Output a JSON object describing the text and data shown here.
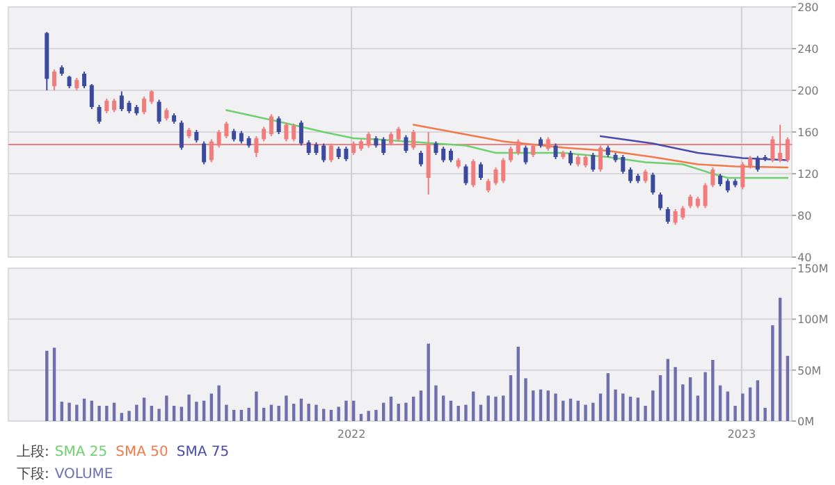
{
  "chart_data": [
    {
      "type": "candlestick",
      "x": [
        "2021-03-22",
        "2021-03-29",
        "2021-04-05",
        "2021-04-12",
        "2021-04-19",
        "2021-04-26",
        "2021-05-03",
        "2021-05-10",
        "2021-05-17",
        "2021-05-24",
        "2021-05-31",
        "2021-06-07",
        "2021-06-14",
        "2021-06-21",
        "2021-06-28",
        "2021-07-05",
        "2021-07-12",
        "2021-07-19",
        "2021-07-26",
        "2021-08-02",
        "2021-08-09",
        "2021-08-16",
        "2021-08-23",
        "2021-08-30",
        "2021-09-06",
        "2021-09-13",
        "2021-09-20",
        "2021-09-27",
        "2021-10-04",
        "2021-10-11",
        "2021-10-18",
        "2021-10-25",
        "2021-11-01",
        "2021-11-08",
        "2021-11-15",
        "2021-11-22",
        "2021-11-29",
        "2021-12-06",
        "2021-12-13",
        "2021-12-20",
        "2021-12-27",
        "2022-01-03",
        "2022-01-10",
        "2022-01-17",
        "2022-01-24",
        "2022-01-31",
        "2022-02-07",
        "2022-02-14",
        "2022-02-21",
        "2022-02-28",
        "2022-03-07",
        "2022-03-14",
        "2022-03-21",
        "2022-03-28",
        "2022-04-04",
        "2022-04-11",
        "2022-04-18",
        "2022-04-25",
        "2022-05-02",
        "2022-05-09",
        "2022-05-16",
        "2022-05-23",
        "2022-05-30",
        "2022-06-06",
        "2022-06-13",
        "2022-06-20",
        "2022-06-27",
        "2022-07-04",
        "2022-07-11",
        "2022-07-18",
        "2022-07-25",
        "2022-08-01",
        "2022-08-08",
        "2022-08-15",
        "2022-08-22",
        "2022-08-29",
        "2022-09-05",
        "2022-09-12",
        "2022-09-19",
        "2022-09-26",
        "2022-10-03",
        "2022-10-10",
        "2022-10-17",
        "2022-10-24",
        "2022-10-31",
        "2022-11-07",
        "2022-11-14",
        "2022-11-21",
        "2022-11-28",
        "2022-12-05",
        "2022-12-12",
        "2022-12-19",
        "2022-12-26",
        "2023-01-02",
        "2023-01-09",
        "2023-01-16",
        "2023-01-23",
        "2023-01-30",
        "2023-02-06",
        "2023-02-13"
      ],
      "ohlc": [
        [
          255,
          256,
          200,
          211
        ],
        [
          204,
          220,
          200,
          218
        ],
        [
          222,
          224,
          214,
          216
        ],
        [
          213,
          214,
          202,
          204
        ],
        [
          202,
          212,
          200,
          210
        ],
        [
          216,
          218,
          202,
          204
        ],
        [
          205,
          206,
          182,
          184
        ],
        [
          184,
          186,
          168,
          170
        ],
        [
          180,
          192,
          178,
          190
        ],
        [
          181,
          192,
          179,
          190
        ],
        [
          195,
          199,
          180,
          182
        ],
        [
          188,
          190,
          178,
          180
        ],
        [
          184,
          186,
          176,
          178
        ],
        [
          179,
          194,
          177,
          192
        ],
        [
          189,
          200,
          187,
          199
        ],
        [
          189,
          191,
          168,
          170
        ],
        [
          173,
          183,
          171,
          181
        ],
        [
          176,
          178,
          168,
          170
        ],
        [
          169,
          171,
          143,
          145
        ],
        [
          156,
          164,
          154,
          162
        ],
        [
          160,
          162,
          150,
          152
        ],
        [
          149,
          151,
          129,
          131
        ],
        [
          133,
          153,
          131,
          151
        ],
        [
          147,
          162,
          145,
          160
        ],
        [
          156,
          170,
          154,
          168
        ],
        [
          161,
          163,
          151,
          153
        ],
        [
          159,
          161,
          149,
          151
        ],
        [
          154,
          156,
          145,
          147
        ],
        [
          140,
          156,
          136,
          154
        ],
        [
          153,
          165,
          151,
          163
        ],
        [
          158,
          177,
          156,
          175
        ],
        [
          173,
          175,
          158,
          160
        ],
        [
          153,
          169,
          151,
          167
        ],
        [
          153,
          168,
          151,
          166
        ],
        [
          169,
          171,
          147,
          149
        ],
        [
          150,
          152,
          138,
          140
        ],
        [
          148,
          150,
          138,
          140
        ],
        [
          147,
          149,
          131,
          133
        ],
        [
          133,
          149,
          131,
          147
        ],
        [
          144,
          146,
          134,
          136
        ],
        [
          144,
          146,
          132,
          134
        ],
        [
          140,
          151,
          138,
          149
        ],
        [
          144,
          153,
          142,
          151
        ],
        [
          147,
          160,
          145,
          158
        ],
        [
          154,
          156,
          145,
          147
        ],
        [
          153,
          155,
          138,
          140
        ],
        [
          149,
          160,
          147,
          158
        ],
        [
          153,
          165,
          151,
          163
        ],
        [
          155,
          157,
          140,
          142
        ],
        [
          145,
          162,
          143,
          160
        ],
        [
          140,
          142,
          127,
          129
        ],
        [
          116,
          160,
          100,
          148
        ],
        [
          149,
          151,
          138,
          140
        ],
        [
          144,
          146,
          131,
          133
        ],
        [
          142,
          144,
          131,
          133
        ],
        [
          127,
          135,
          125,
          133
        ],
        [
          127,
          129,
          109,
          111
        ],
        [
          109,
          134,
          107,
          132
        ],
        [
          129,
          131,
          114,
          116
        ],
        [
          104,
          115,
          102,
          113
        ],
        [
          111,
          126,
          109,
          124
        ],
        [
          113,
          135,
          111,
          133
        ],
        [
          133,
          146,
          131,
          144
        ],
        [
          140,
          153,
          138,
          151
        ],
        [
          145,
          147,
          129,
          131
        ],
        [
          138,
          149,
          136,
          147
        ],
        [
          153,
          155,
          145,
          147
        ],
        [
          144,
          155,
          142,
          153
        ],
        [
          147,
          149,
          134,
          136
        ],
        [
          136,
          142,
          134,
          140
        ],
        [
          140,
          142,
          128,
          130
        ],
        [
          129,
          138,
          127,
          136
        ],
        [
          128,
          138,
          126,
          136
        ],
        [
          138,
          140,
          122,
          124
        ],
        [
          124,
          147,
          122,
          145
        ],
        [
          145,
          147,
          136,
          138
        ],
        [
          138,
          140,
          131,
          133
        ],
        [
          136,
          138,
          120,
          122
        ],
        [
          124,
          126,
          111,
          113
        ],
        [
          118,
          120,
          111,
          113
        ],
        [
          113,
          124,
          111,
          122
        ],
        [
          119,
          121,
          100,
          102
        ],
        [
          100,
          102,
          85,
          87
        ],
        [
          86,
          88,
          72,
          74
        ],
        [
          73,
          86,
          71,
          84
        ],
        [
          78,
          89,
          76,
          87
        ],
        [
          89,
          100,
          87,
          98
        ],
        [
          89,
          98,
          87,
          96
        ],
        [
          89,
          111,
          87,
          109
        ],
        [
          109,
          126,
          107,
          124
        ],
        [
          118,
          120,
          108,
          110
        ],
        [
          113,
          115,
          102,
          104
        ],
        [
          113,
          115,
          107,
          109
        ],
        [
          107,
          131,
          105,
          129
        ],
        [
          127,
          137,
          125,
          135
        ],
        [
          135,
          137,
          122,
          124
        ],
        [
          136,
          138,
          132,
          134
        ],
        [
          133,
          156,
          131,
          153
        ],
        [
          133,
          167,
          131,
          140
        ],
        [
          133,
          155,
          131,
          153
        ]
      ],
      "series": [
        {
          "name": "SMA 25",
          "color": "#6fd06f",
          "type": "line",
          "x": [
            "2021-09-06",
            "2021-10-25",
            "2021-12-06",
            "2022-01-03",
            "2022-01-24",
            "2022-02-21",
            "2022-04-18",
            "2022-05-16",
            "2022-07-18",
            "2022-08-29",
            "2022-10-03",
            "2022-11-07",
            "2022-12-05",
            "2022-12-19",
            "2023-02-13"
          ],
          "values": [
            181,
            170,
            160,
            154,
            153,
            151,
            147,
            140,
            140,
            136,
            131,
            129,
            120,
            116,
            116
          ]
        },
        {
          "name": "SMA 50",
          "color": "#f07a4a",
          "type": "line",
          "x": [
            "2022-02-28",
            "2022-05-23",
            "2022-07-18",
            "2022-08-29",
            "2022-10-10",
            "2022-11-21",
            "2022-12-26",
            "2023-02-13"
          ],
          "values": [
            167,
            151,
            145,
            142,
            136,
            129,
            127,
            126
          ]
        },
        {
          "name": "SMA 75",
          "color": "#4a4aa8",
          "type": "line",
          "x": [
            "2022-08-22",
            "2022-10-10",
            "2022-11-21",
            "2023-01-02",
            "2023-02-13"
          ],
          "values": [
            156,
            149,
            140,
            135,
            133
          ]
        }
      ],
      "ref_lines": [
        {
          "axis": "y",
          "value": 148,
          "color": "#f08080"
        }
      ],
      "xlim": [
        "2021-02-14",
        "2023-02-17"
      ],
      "xticks": [
        {
          "value": "2022-01-01",
          "label": null
        },
        {
          "value": "2023-01-01",
          "label": null
        }
      ],
      "ylim": [
        40,
        280
      ],
      "yticks": [
        40,
        80,
        120,
        160,
        200,
        240,
        280
      ],
      "tick_labels": "y",
      "grid": true,
      "legend": "bottom",
      "legend_title": "上段:"
    },
    {
      "type": "bar",
      "x": [
        "2021-03-22",
        "2021-03-29",
        "2021-04-05",
        "2021-04-12",
        "2021-04-19",
        "2021-04-26",
        "2021-05-03",
        "2021-05-10",
        "2021-05-17",
        "2021-05-24",
        "2021-05-31",
        "2021-06-07",
        "2021-06-14",
        "2021-06-21",
        "2021-06-28",
        "2021-07-05",
        "2021-07-12",
        "2021-07-19",
        "2021-07-26",
        "2021-08-02",
        "2021-08-09",
        "2021-08-16",
        "2021-08-23",
        "2021-08-30",
        "2021-09-06",
        "2021-09-13",
        "2021-09-20",
        "2021-09-27",
        "2021-10-04",
        "2021-10-11",
        "2021-10-18",
        "2021-10-25",
        "2021-11-01",
        "2021-11-08",
        "2021-11-15",
        "2021-11-22",
        "2021-11-29",
        "2021-12-06",
        "2021-12-13",
        "2021-12-20",
        "2021-12-27",
        "2022-01-03",
        "2022-01-10",
        "2022-01-17",
        "2022-01-24",
        "2022-01-31",
        "2022-02-07",
        "2022-02-14",
        "2022-02-21",
        "2022-02-28",
        "2022-03-07",
        "2022-03-14",
        "2022-03-21",
        "2022-03-28",
        "2022-04-04",
        "2022-04-11",
        "2022-04-18",
        "2022-04-25",
        "2022-05-02",
        "2022-05-09",
        "2022-05-16",
        "2022-05-23",
        "2022-05-30",
        "2022-06-06",
        "2022-06-13",
        "2022-06-20",
        "2022-06-27",
        "2022-07-04",
        "2022-07-11",
        "2022-07-18",
        "2022-07-25",
        "2022-08-01",
        "2022-08-08",
        "2022-08-15",
        "2022-08-22",
        "2022-08-29",
        "2022-09-05",
        "2022-09-12",
        "2022-09-19",
        "2022-09-26",
        "2022-10-03",
        "2022-10-10",
        "2022-10-17",
        "2022-10-24",
        "2022-10-31",
        "2022-11-07",
        "2022-11-14",
        "2022-11-21",
        "2022-11-28",
        "2022-12-05",
        "2022-12-12",
        "2022-12-19",
        "2022-12-26",
        "2023-01-02",
        "2023-01-09",
        "2023-01-16",
        "2023-01-23",
        "2023-01-30",
        "2023-02-06",
        "2023-02-13"
      ],
      "series": [
        {
          "name": "VOLUME",
          "color": "#6f6fad",
          "values": [
            69,
            72,
            19,
            18,
            16,
            22,
            20,
            15,
            15,
            18,
            8,
            10,
            16,
            23,
            15,
            12,
            25,
            15,
            14,
            26,
            19,
            20,
            27,
            35,
            16,
            11,
            11,
            13,
            29,
            13,
            16,
            15,
            25,
            17,
            22,
            17,
            16,
            12,
            11,
            14,
            20,
            20,
            7,
            10,
            11,
            18,
            24,
            17,
            18,
            24,
            30,
            76,
            35,
            25,
            20,
            15,
            16,
            29,
            16,
            25,
            24,
            25,
            45,
            73,
            42,
            30,
            31,
            30,
            27,
            20,
            22,
            20,
            16,
            18,
            27,
            47,
            31,
            27,
            24,
            23,
            15,
            30,
            45,
            61,
            53,
            36,
            43,
            25,
            48,
            60,
            35,
            29,
            15,
            27,
            33,
            40,
            13,
            94,
            121,
            64
          ]
        }
      ],
      "xlim": [
        "2021-02-14",
        "2023-02-17"
      ],
      "xticks": [
        {
          "value": "2022-01-01",
          "label": "2022"
        },
        {
          "value": "2023-01-01",
          "label": "2023"
        }
      ],
      "ylim": [
        0,
        150
      ],
      "yticks": [
        {
          "value": 0,
          "label": "0M"
        },
        {
          "value": 50,
          "label": "50M"
        },
        {
          "value": 100,
          "label": "100M"
        },
        {
          "value": 150,
          "label": "150M"
        }
      ],
      "grid": true,
      "legend": "bottom",
      "legend_title": "下段:"
    }
  ]
}
